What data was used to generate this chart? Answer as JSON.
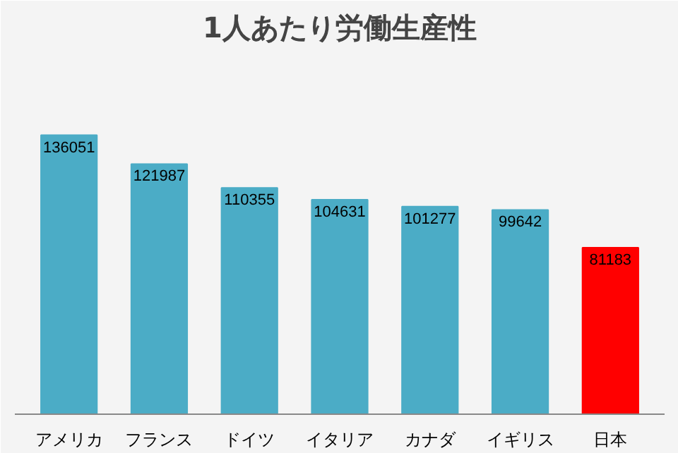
{
  "chart_data": {
    "type": "bar",
    "title": "1人あたり労働生産性",
    "categories": [
      "アメリカ",
      "フランス",
      "ドイツ",
      "イタリア",
      "カナダ",
      "イギリス",
      "日本"
    ],
    "values": [
      136051,
      121987,
      110355,
      104631,
      101277,
      99642,
      81183
    ],
    "colors": [
      "#4bacc6",
      "#4bacc6",
      "#4bacc6",
      "#4bacc6",
      "#4bacc6",
      "#4bacc6",
      "#ff0000"
    ],
    "data_labels": true
  }
}
